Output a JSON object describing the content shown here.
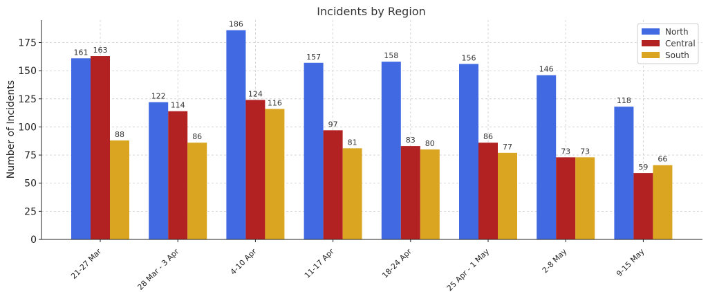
{
  "chart_data": {
    "type": "bar",
    "title": "Incidents by Region",
    "xlabel": "",
    "ylabel": "Number of Incidents",
    "categories": [
      "21-27 Mar",
      "28 Mar - 3 Apr",
      "4-10 Apr",
      "11-17 Apr",
      "18-24 Apr",
      "25 Apr - 1 May",
      "2-8 May",
      "9-15 May"
    ],
    "series": [
      {
        "name": "North",
        "color": "#4169e1",
        "values": [
          161,
          122,
          186,
          157,
          158,
          156,
          146,
          118
        ]
      },
      {
        "name": "Central",
        "color": "#b22222",
        "values": [
          163,
          114,
          124,
          97,
          83,
          86,
          73,
          59
        ]
      },
      {
        "name": "South",
        "color": "#daa520",
        "values": [
          88,
          86,
          116,
          81,
          80,
          77,
          73,
          66
        ]
      }
    ],
    "ylim": [
      0,
      195
    ],
    "yticks": [
      0,
      25,
      50,
      75,
      100,
      125,
      150,
      175
    ],
    "grid": true,
    "legend_position": "top-right",
    "data_labels": true
  }
}
